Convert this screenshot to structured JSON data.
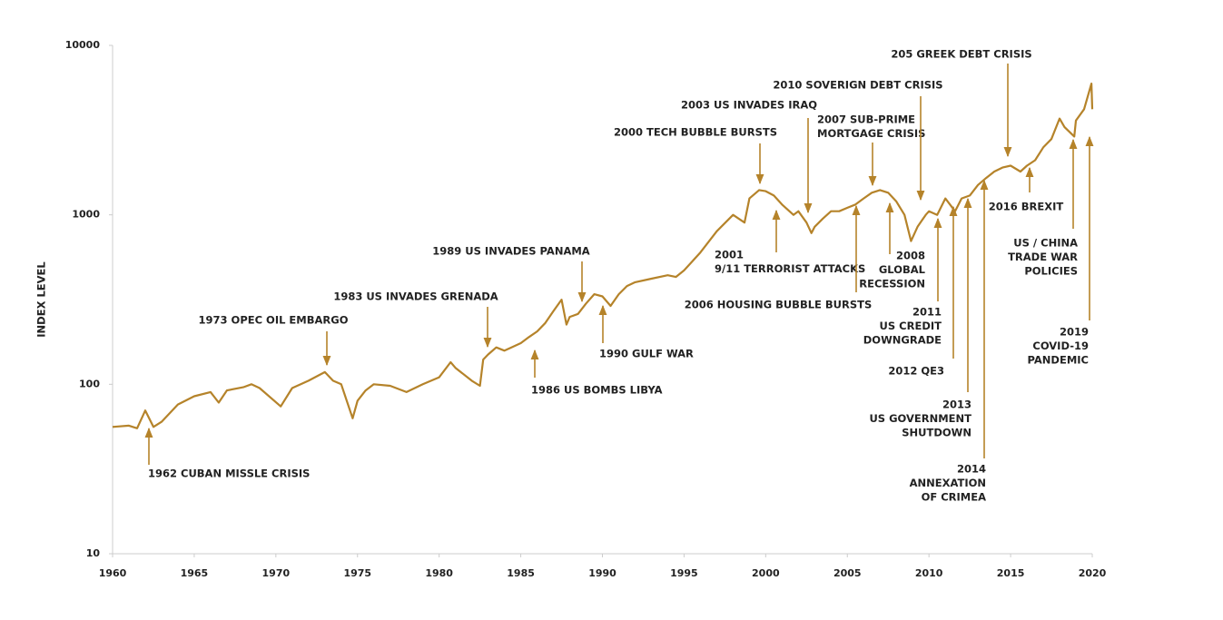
{
  "chart_data": {
    "type": "line",
    "ylabel": "INDEX LEVEL",
    "log_y": true,
    "color": "#b5832a",
    "xlim": [
      1960,
      2020
    ],
    "xticks": [
      1960,
      1965,
      1970,
      1975,
      1980,
      1985,
      1990,
      1995,
      2000,
      2005,
      2010,
      2015,
      2020
    ],
    "ylim": [
      10,
      10000
    ],
    "yticks": [
      10,
      100,
      1000,
      10000
    ],
    "x": [
      1960,
      1961,
      1961.5,
      1962,
      1962.5,
      1963,
      1964,
      1965,
      1966,
      1966.5,
      1967,
      1968,
      1968.5,
      1969,
      1970.3,
      1971,
      1972,
      1973,
      1973.5,
      1974,
      1974.7,
      1975,
      1975.5,
      1976,
      1977,
      1978,
      1979,
      1980,
      1980.7,
      1981,
      1982,
      1982.5,
      1982.7,
      1983,
      1983.5,
      1984,
      1985,
      1985.5,
      1986,
      1986.5,
      1987,
      1987.5,
      1987.8,
      1988,
      1988.5,
      1989,
      1989.5,
      1990,
      1990.5,
      1991,
      1991.5,
      1992,
      1993,
      1994,
      1994.5,
      1995,
      1996,
      1997,
      1998,
      1998.7,
      1999,
      1999.6,
      2000,
      2000.5,
      2001,
      2001.7,
      2002,
      2002.5,
      2002.8,
      2003,
      2003.5,
      2004,
      2004.5,
      2005,
      2005.5,
      2006,
      2006.5,
      2007,
      2007.5,
      2008,
      2008.5,
      2008.9,
      2009.3,
      2009.8,
      2010,
      2010.5,
      2011,
      2011.6,
      2012,
      2012.5,
      2013,
      2013.5,
      2014,
      2014.5,
      2015,
      2015.6,
      2016,
      2016.5,
      2017,
      2017.5,
      2018,
      2018.3,
      2018.9,
      2019,
      2019.5,
      2019.95,
      2020
    ],
    "values": [
      56,
      57,
      55,
      70,
      56,
      60,
      76,
      85,
      90,
      78,
      92,
      96,
      100,
      95,
      74,
      95,
      105,
      118,
      105,
      100,
      63,
      80,
      92,
      100,
      98,
      90,
      100,
      110,
      135,
      125,
      105,
      98,
      140,
      150,
      165,
      158,
      175,
      190,
      205,
      230,
      270,
      316,
      225,
      250,
      260,
      300,
      340,
      330,
      290,
      340,
      380,
      400,
      420,
      440,
      430,
      470,
      600,
      800,
      1000,
      900,
      1250,
      1400,
      1380,
      1300,
      1150,
      1000,
      1050,
      900,
      780,
      850,
      950,
      1050,
      1050,
      1100,
      1150,
      1250,
      1350,
      1400,
      1350,
      1200,
      1000,
      700,
      850,
      1000,
      1050,
      1000,
      1250,
      1050,
      1250,
      1300,
      1500,
      1650,
      1800,
      1900,
      1950,
      1800,
      1950,
      2100,
      2500,
      2800,
      3700,
      3300,
      2900,
      3600,
      4200,
      5950,
      4200
    ],
    "annotations": [
      {
        "lines": [
          "1962 CUBAN MISSLE CRISIS"
        ]
      },
      {
        "lines": [
          "1973 OPEC OIL EMBARGO"
        ]
      },
      {
        "lines": [
          "1983 US INVADES GRENADA"
        ]
      },
      {
        "lines": [
          "1989 US INVADES PANAMA"
        ]
      },
      {
        "lines": [
          "1986 US BOMBS LIBYA"
        ]
      },
      {
        "lines": [
          "1990 GULF WAR"
        ]
      },
      {
        "lines": [
          "2000 TECH BUBBLE BURSTS"
        ]
      },
      {
        "lines": [
          "2003 US INVADES IRAQ"
        ]
      },
      {
        "lines": [
          "2001",
          "9/11 TERRORIST ATTACKS"
        ]
      },
      {
        "lines": [
          "2006 HOUSING BUBBLE BURSTS"
        ]
      },
      {
        "lines": [
          "2007 SUB-PRIME",
          "MORTGAGE CRISIS"
        ]
      },
      {
        "lines": [
          "2010 SOVERIGN DEBT CRISIS"
        ]
      },
      {
        "lines": [
          "205 GREEK DEBT CRISIS"
        ]
      },
      {
        "lines": [
          "2008",
          "GLOBAL",
          "RECESSION"
        ]
      },
      {
        "lines": [
          "2011",
          "US CREDIT",
          "DOWNGRADE"
        ]
      },
      {
        "lines": [
          "2012 QE3"
        ]
      },
      {
        "lines": [
          "2013",
          "US GOVERNMENT",
          "SHUTDOWN"
        ]
      },
      {
        "lines": [
          "2014",
          "ANNEXATION",
          "OF CRIMEA"
        ]
      },
      {
        "lines": [
          "2016 BREXIT"
        ]
      },
      {
        "lines": [
          "US / CHINA",
          "TRADE WAR",
          "POLICIES"
        ]
      },
      {
        "lines": [
          "2019",
          "COVID-19",
          "PANDEMIC"
        ]
      }
    ]
  }
}
